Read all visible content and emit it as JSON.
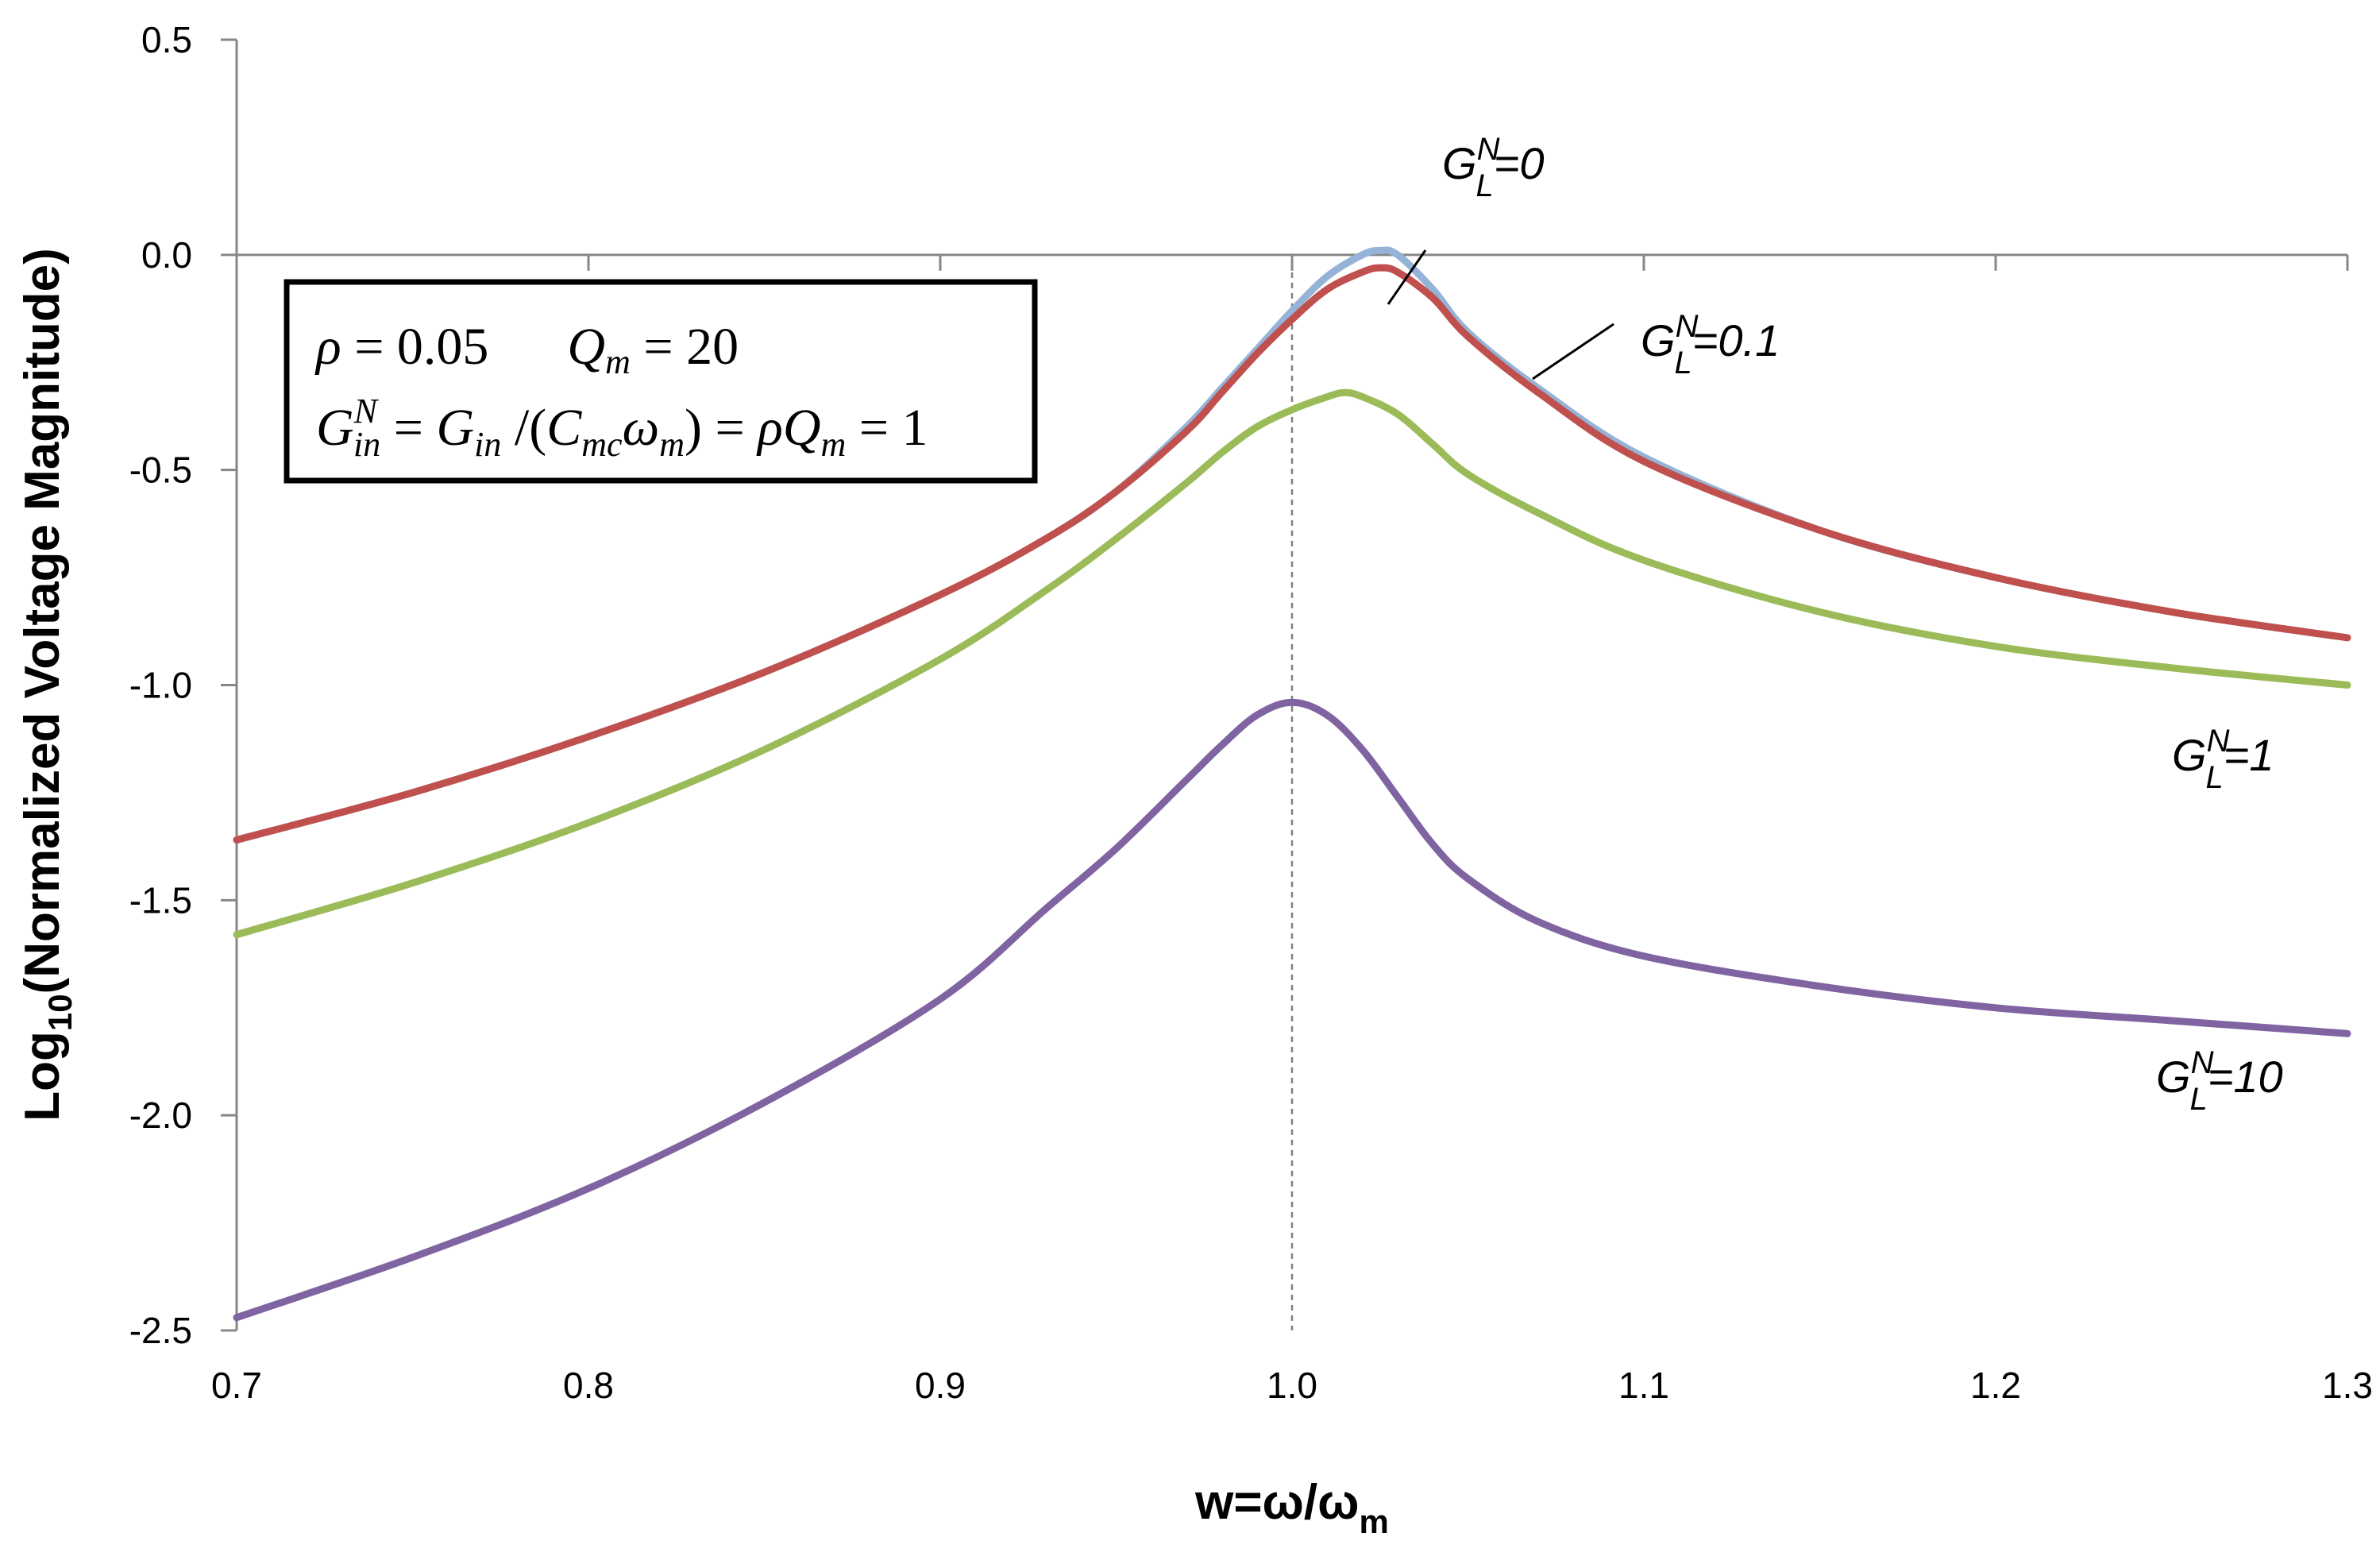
{
  "chart_data": {
    "type": "line",
    "xlabel": "w=ω/ω",
    "xlabel_sub": "m",
    "ylabel": "Log",
    "ylabel_sub": "10",
    "ylabel_rest": "(Normalized Voltage Magnitude)",
    "xlim": [
      0.7,
      1.3
    ],
    "ylim": [
      -2.5,
      0.5
    ],
    "x_ticks": [
      "0.7",
      "0.8",
      "0.9",
      "1.0",
      "1.1",
      "1.2",
      "1.3"
    ],
    "y_ticks": [
      "0.5",
      "0.0",
      "-0.5",
      "-1.0",
      "-1.5",
      "-2.0",
      "-2.5"
    ],
    "reference_line_x": 1.0,
    "params_box": {
      "line1": "ρ = 0.05    Q_m = 20",
      "line2": "G_in^N = G_in /(C_mc ω_m) = ρ Q_m = 1"
    },
    "series": [
      {
        "label": "G_L^N=0",
        "color": "#95b3d7",
        "x": [
          0.7,
          0.75,
          0.8,
          0.85,
          0.9,
          0.93,
          0.95,
          0.97,
          0.98,
          0.99,
          1.0,
          1.01,
          1.02,
          1.025,
          1.03,
          1.04,
          1.05,
          1.07,
          1.1,
          1.15,
          1.2,
          1.25,
          1.3
        ],
        "y": [
          -1.36,
          -1.25,
          -1.12,
          -0.97,
          -0.79,
          -0.66,
          -0.55,
          -0.4,
          -0.31,
          -0.22,
          -0.13,
          -0.05,
          0.0,
          0.01,
          0.0,
          -0.08,
          -0.18,
          -0.31,
          -0.47,
          -0.64,
          -0.75,
          -0.83,
          -0.89
        ]
      },
      {
        "label": "G_L^N=0.1",
        "color": "#c0504d",
        "x": [
          0.7,
          0.75,
          0.8,
          0.85,
          0.9,
          0.93,
          0.95,
          0.97,
          0.98,
          0.99,
          1.0,
          1.01,
          1.02,
          1.025,
          1.03,
          1.04,
          1.05,
          1.07,
          1.1,
          1.15,
          1.2,
          1.25,
          1.3
        ],
        "y": [
          -1.36,
          -1.25,
          -1.12,
          -0.97,
          -0.79,
          -0.66,
          -0.55,
          -0.41,
          -0.32,
          -0.23,
          -0.15,
          -0.08,
          -0.04,
          -0.03,
          -0.04,
          -0.1,
          -0.19,
          -0.32,
          -0.48,
          -0.64,
          -0.75,
          -0.83,
          -0.89
        ]
      },
      {
        "label": "G_L^N=1",
        "color": "#9bbb59",
        "x": [
          0.7,
          0.75,
          0.8,
          0.85,
          0.9,
          0.93,
          0.95,
          0.97,
          0.98,
          0.99,
          1.0,
          1.01,
          1.015,
          1.02,
          1.03,
          1.04,
          1.05,
          1.07,
          1.1,
          1.15,
          1.2,
          1.25,
          1.3
        ],
        "y": [
          -1.58,
          -1.46,
          -1.32,
          -1.15,
          -0.94,
          -0.78,
          -0.66,
          -0.53,
          -0.46,
          -0.4,
          -0.36,
          -0.33,
          -0.32,
          -0.33,
          -0.37,
          -0.44,
          -0.51,
          -0.6,
          -0.71,
          -0.83,
          -0.91,
          -0.96,
          -1.0
        ]
      },
      {
        "label": "G_L^N=10",
        "color": "#8064a2",
        "x": [
          0.7,
          0.75,
          0.8,
          0.85,
          0.9,
          0.93,
          0.95,
          0.97,
          0.98,
          0.99,
          1.0,
          1.01,
          1.02,
          1.03,
          1.04,
          1.05,
          1.07,
          1.1,
          1.15,
          1.2,
          1.25,
          1.3
        ],
        "y": [
          -2.47,
          -2.33,
          -2.17,
          -1.97,
          -1.73,
          -1.52,
          -1.38,
          -1.22,
          -1.14,
          -1.07,
          -1.04,
          -1.07,
          -1.15,
          -1.26,
          -1.37,
          -1.45,
          -1.55,
          -1.63,
          -1.7,
          -1.75,
          -1.78,
          -1.81
        ]
      }
    ]
  }
}
